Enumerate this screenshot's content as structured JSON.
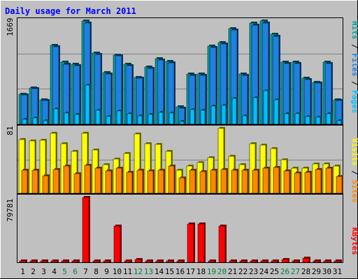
{
  "chart_data": {
    "type": "bar",
    "title": "Daily usage for March 2011",
    "categories": [
      "1",
      "2",
      "3",
      "4",
      "5",
      "6",
      "7",
      "8",
      "9",
      "10",
      "11",
      "12",
      "13",
      "14",
      "15",
      "16",
      "17",
      "18",
      "19",
      "20",
      "21",
      "22",
      "23",
      "24",
      "25",
      "26",
      "27",
      "28",
      "29",
      "30",
      "31"
    ],
    "weekend_days": [
      5,
      6,
      12,
      13,
      19,
      20,
      26,
      27
    ],
    "panels": [
      {
        "id": "hits",
        "max_label": "1669",
        "ylim": [
          0,
          1669
        ],
        "series": [
          {
            "name": "Hits",
            "color": "#00a0a0",
            "values": [
              490,
              590,
              400,
              1270,
              1000,
              970,
              1669,
              1150,
              830,
              1120,
              970,
              760,
              920,
              1060,
              1010,
              280,
              810,
              810,
              1260,
              1320,
              1550,
              810,
              1630,
              1669,
              1450,
              1000,
              1000,
              740,
              680,
              1000,
              400
            ]
          },
          {
            "name": "Files",
            "color": "#2080e0",
            "values": [
              470,
              570,
              380,
              1250,
              970,
              950,
              1640,
              1130,
              810,
              1100,
              950,
              740,
              900,
              1040,
              990,
              260,
              790,
              790,
              1240,
              1300,
              1520,
              790,
              1600,
              1640,
              1420,
              980,
              980,
              720,
              660,
              980,
              380
            ]
          },
          {
            "name": "Pages",
            "color": "#00c0ff",
            "values": [
              80,
              100,
              60,
              250,
              180,
              160,
              630,
              220,
              120,
              210,
              170,
              130,
              160,
              190,
              180,
              50,
              240,
              220,
              290,
              310,
              420,
              140,
              430,
              540,
              390,
              170,
              170,
              120,
              110,
              170,
              60
            ]
          }
        ]
      },
      {
        "id": "visits",
        "max_label": "81",
        "ylim": [
          0,
          81
        ],
        "series": [
          {
            "name": "Visits",
            "color": "#ffff00",
            "values": [
              67,
              65,
              66,
              75,
              62,
              52,
              75,
              54,
              36,
              43,
              50,
              74,
              62,
              61,
              52,
              29,
              34,
              38,
              44,
              81,
              46,
              36,
              62,
              60,
              56,
              42,
              31,
              31,
              37,
              37,
              34
            ]
          },
          {
            "name": "Sites",
            "color": "#ff8800",
            "values": [
              29,
              29,
              22,
              30,
              34,
              24,
              35,
              31,
              28,
              31,
              26,
              29,
              28,
              29,
              34,
              19,
              29,
              27,
              29,
              30,
              29,
              29,
              29,
              31,
              32,
              28,
              25,
              26,
              30,
              31,
              21
            ]
          }
        ]
      },
      {
        "id": "kbytes",
        "max_label": "79781",
        "ylim": [
          0,
          79781
        ],
        "series": [
          {
            "name": "KBytes",
            "color": "#ff0000",
            "values": [
              600,
              600,
              600,
              600,
              600,
              600,
              79781,
              600,
              600,
              45000,
              600,
              3500,
              600,
              600,
              600,
              600,
              47000,
              47000,
              600,
              45000,
              600,
              600,
              1500,
              1500,
              1500,
              3500,
              600,
              5500,
              600,
              600,
              600
            ]
          }
        ]
      }
    ],
    "right_labels": {
      "top": [
        {
          "text": "Hits",
          "color": "#00a0a0"
        },
        {
          "text": " / ",
          "color": "#000000"
        },
        {
          "text": "Files",
          "color": "#2080e0"
        },
        {
          "text": " / ",
          "color": "#000000"
        },
        {
          "text": "Pages",
          "color": "#00c0ff"
        }
      ],
      "middle": [
        {
          "text": "Visits",
          "color": "#ffff00"
        },
        {
          "text": " / ",
          "color": "#000000"
        },
        {
          "text": "Sites",
          "color": "#ff8800"
        }
      ],
      "bottom": [
        {
          "text": "KBytes",
          "color": "#ff0000"
        }
      ]
    },
    "title_color": "#0000ff",
    "weekend_label_color": "#008040",
    "grid": true,
    "legend": "right"
  }
}
